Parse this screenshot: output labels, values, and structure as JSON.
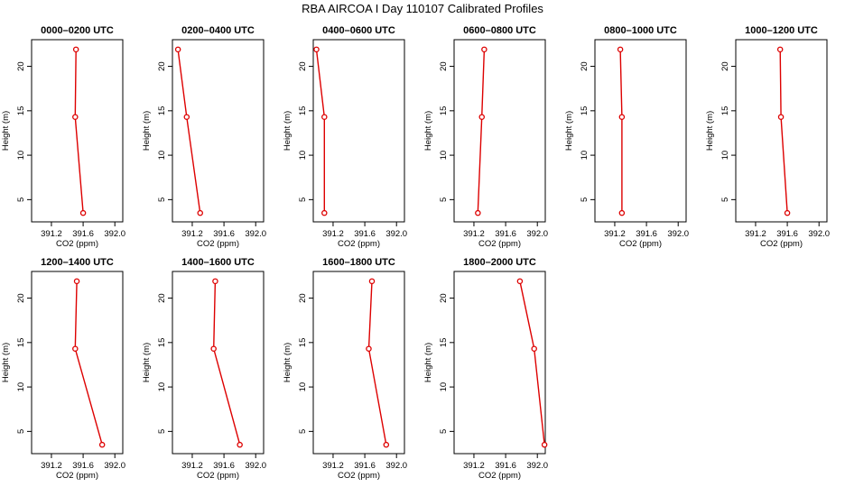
{
  "figure": {
    "title": "RBA AIRCOA I  Day 110107  Calibrated Profiles"
  },
  "chart_data": [
    {
      "type": "line",
      "title": "0000–0200 UTC",
      "xlabel": "CO2 (ppm)",
      "ylabel": "Height (m)",
      "xlim": [
        390.95,
        392.1
      ],
      "ylim": [
        2.5,
        23
      ],
      "x_ticks": [
        "391.2",
        "391.6",
        "392.0"
      ],
      "y_ticks": [
        "5",
        "10",
        "15",
        "20"
      ],
      "x_tick_values": [
        391.2,
        391.6,
        392.0
      ],
      "y_tick_values": [
        5,
        10,
        15,
        20
      ],
      "series": [
        {
          "color": "#dd0000",
          "points": [
            {
              "x": 391.6,
              "y": 3.5
            },
            {
              "x": 391.5,
              "y": 14.3
            },
            {
              "x": 391.51,
              "y": 21.9
            }
          ]
        }
      ]
    },
    {
      "type": "line",
      "title": "0200–0400 UTC",
      "xlabel": "CO2 (ppm)",
      "ylabel": "Height (m)",
      "xlim": [
        390.95,
        392.1
      ],
      "ylim": [
        2.5,
        23
      ],
      "x_ticks": [
        "391.2",
        "391.6",
        "392.0"
      ],
      "y_ticks": [
        "5",
        "10",
        "15",
        "20"
      ],
      "x_tick_values": [
        391.2,
        391.6,
        392.0
      ],
      "y_tick_values": [
        5,
        10,
        15,
        20
      ],
      "series": [
        {
          "color": "#dd0000",
          "points": [
            {
              "x": 391.3,
              "y": 3.5
            },
            {
              "x": 391.13,
              "y": 14.3
            },
            {
              "x": 391.02,
              "y": 21.9
            }
          ]
        }
      ]
    },
    {
      "type": "line",
      "title": "0400–0600 UTC",
      "xlabel": "CO2 (ppm)",
      "ylabel": "Height (m)",
      "xlim": [
        390.95,
        392.1
      ],
      "ylim": [
        2.5,
        23
      ],
      "x_ticks": [
        "391.2",
        "391.6",
        "392.0"
      ],
      "y_ticks": [
        "5",
        "10",
        "15",
        "20"
      ],
      "x_tick_values": [
        391.2,
        391.6,
        392.0
      ],
      "y_tick_values": [
        5,
        10,
        15,
        20
      ],
      "series": [
        {
          "color": "#dd0000",
          "points": [
            {
              "x": 391.09,
              "y": 3.5
            },
            {
              "x": 391.09,
              "y": 14.3
            },
            {
              "x": 390.99,
              "y": 21.9
            }
          ]
        }
      ]
    },
    {
      "type": "line",
      "title": "0600–0800 UTC",
      "xlabel": "CO2 (ppm)",
      "ylabel": "Height (m)",
      "xlim": [
        390.95,
        392.1
      ],
      "ylim": [
        2.5,
        23
      ],
      "x_ticks": [
        "391.2",
        "391.6",
        "392.0"
      ],
      "y_ticks": [
        "5",
        "10",
        "15",
        "20"
      ],
      "x_tick_values": [
        391.2,
        391.6,
        392.0
      ],
      "y_tick_values": [
        5,
        10,
        15,
        20
      ],
      "series": [
        {
          "color": "#dd0000",
          "points": [
            {
              "x": 391.25,
              "y": 3.5
            },
            {
              "x": 391.3,
              "y": 14.3
            },
            {
              "x": 391.33,
              "y": 21.9
            }
          ]
        }
      ]
    },
    {
      "type": "line",
      "title": "0800–1000 UTC",
      "xlabel": "CO2 (ppm)",
      "ylabel": "Height (m)",
      "xlim": [
        390.95,
        392.1
      ],
      "ylim": [
        2.5,
        23
      ],
      "x_ticks": [
        "391.2",
        "391.6",
        "392.0"
      ],
      "y_ticks": [
        "5",
        "10",
        "15",
        "20"
      ],
      "x_tick_values": [
        391.2,
        391.6,
        392.0
      ],
      "y_tick_values": [
        5,
        10,
        15,
        20
      ],
      "series": [
        {
          "color": "#dd0000",
          "points": [
            {
              "x": 391.29,
              "y": 3.5
            },
            {
              "x": 391.29,
              "y": 14.3
            },
            {
              "x": 391.27,
              "y": 21.9
            }
          ]
        }
      ]
    },
    {
      "type": "line",
      "title": "1000–1200 UTC",
      "xlabel": "CO2 (ppm)",
      "ylabel": "Height (m)",
      "xlim": [
        390.95,
        392.1
      ],
      "ylim": [
        2.5,
        23
      ],
      "x_ticks": [
        "391.2",
        "391.6",
        "392.0"
      ],
      "y_ticks": [
        "5",
        "10",
        "15",
        "20"
      ],
      "x_tick_values": [
        391.2,
        391.6,
        392.0
      ],
      "y_tick_values": [
        5,
        10,
        15,
        20
      ],
      "series": [
        {
          "color": "#dd0000",
          "points": [
            {
              "x": 391.6,
              "y": 3.5
            },
            {
              "x": 391.52,
              "y": 14.3
            },
            {
              "x": 391.51,
              "y": 21.9
            }
          ]
        }
      ]
    },
    {
      "type": "line",
      "title": "1200–1400 UTC",
      "xlabel": "CO2 (ppm)",
      "ylabel": "Height (m)",
      "xlim": [
        390.95,
        392.1
      ],
      "ylim": [
        2.5,
        23
      ],
      "x_ticks": [
        "391.2",
        "391.6",
        "392.0"
      ],
      "y_ticks": [
        "5",
        "10",
        "15",
        "20"
      ],
      "x_tick_values": [
        391.2,
        391.6,
        392.0
      ],
      "y_tick_values": [
        5,
        10,
        15,
        20
      ],
      "series": [
        {
          "color": "#dd0000",
          "points": [
            {
              "x": 391.84,
              "y": 3.5
            },
            {
              "x": 391.5,
              "y": 14.3
            },
            {
              "x": 391.52,
              "y": 21.9
            }
          ]
        }
      ]
    },
    {
      "type": "line",
      "title": "1400–1600 UTC",
      "xlabel": "CO2 (ppm)",
      "ylabel": "Height (m)",
      "xlim": [
        390.95,
        392.1
      ],
      "ylim": [
        2.5,
        23
      ],
      "x_ticks": [
        "391.2",
        "391.6",
        "392.0"
      ],
      "y_ticks": [
        "5",
        "10",
        "15",
        "20"
      ],
      "x_tick_values": [
        391.2,
        391.6,
        392.0
      ],
      "y_tick_values": [
        5,
        10,
        15,
        20
      ],
      "series": [
        {
          "color": "#dd0000",
          "points": [
            {
              "x": 391.8,
              "y": 3.5
            },
            {
              "x": 391.47,
              "y": 14.3
            },
            {
              "x": 391.49,
              "y": 21.9
            }
          ]
        }
      ]
    },
    {
      "type": "line",
      "title": "1600–1800 UTC",
      "xlabel": "CO2 (ppm)",
      "ylabel": "Height (m)",
      "xlim": [
        390.95,
        392.1
      ],
      "ylim": [
        2.5,
        23
      ],
      "x_ticks": [
        "391.2",
        "391.6",
        "392.0"
      ],
      "y_ticks": [
        "5",
        "10",
        "15",
        "20"
      ],
      "x_tick_values": [
        391.2,
        391.6,
        392.0
      ],
      "y_tick_values": [
        5,
        10,
        15,
        20
      ],
      "series": [
        {
          "color": "#dd0000",
          "points": [
            {
              "x": 391.87,
              "y": 3.5
            },
            {
              "x": 391.65,
              "y": 14.3
            },
            {
              "x": 391.69,
              "y": 21.9
            }
          ]
        }
      ]
    },
    {
      "type": "line",
      "title": "1800–2000 UTC",
      "xlabel": "CO2 (ppm)",
      "ylabel": "Height (m)",
      "xlim": [
        390.95,
        392.1
      ],
      "ylim": [
        2.5,
        23
      ],
      "x_ticks": [
        "391.2",
        "391.6",
        "392.0"
      ],
      "y_ticks": [
        "5",
        "10",
        "15",
        "20"
      ],
      "x_tick_values": [
        391.2,
        391.6,
        392.0
      ],
      "y_tick_values": [
        5,
        10,
        15,
        20
      ],
      "series": [
        {
          "color": "#dd0000",
          "points": [
            {
              "x": 392.09,
              "y": 3.5
            },
            {
              "x": 391.96,
              "y": 14.3
            },
            {
              "x": 391.78,
              "y": 21.9
            }
          ]
        }
      ]
    }
  ]
}
